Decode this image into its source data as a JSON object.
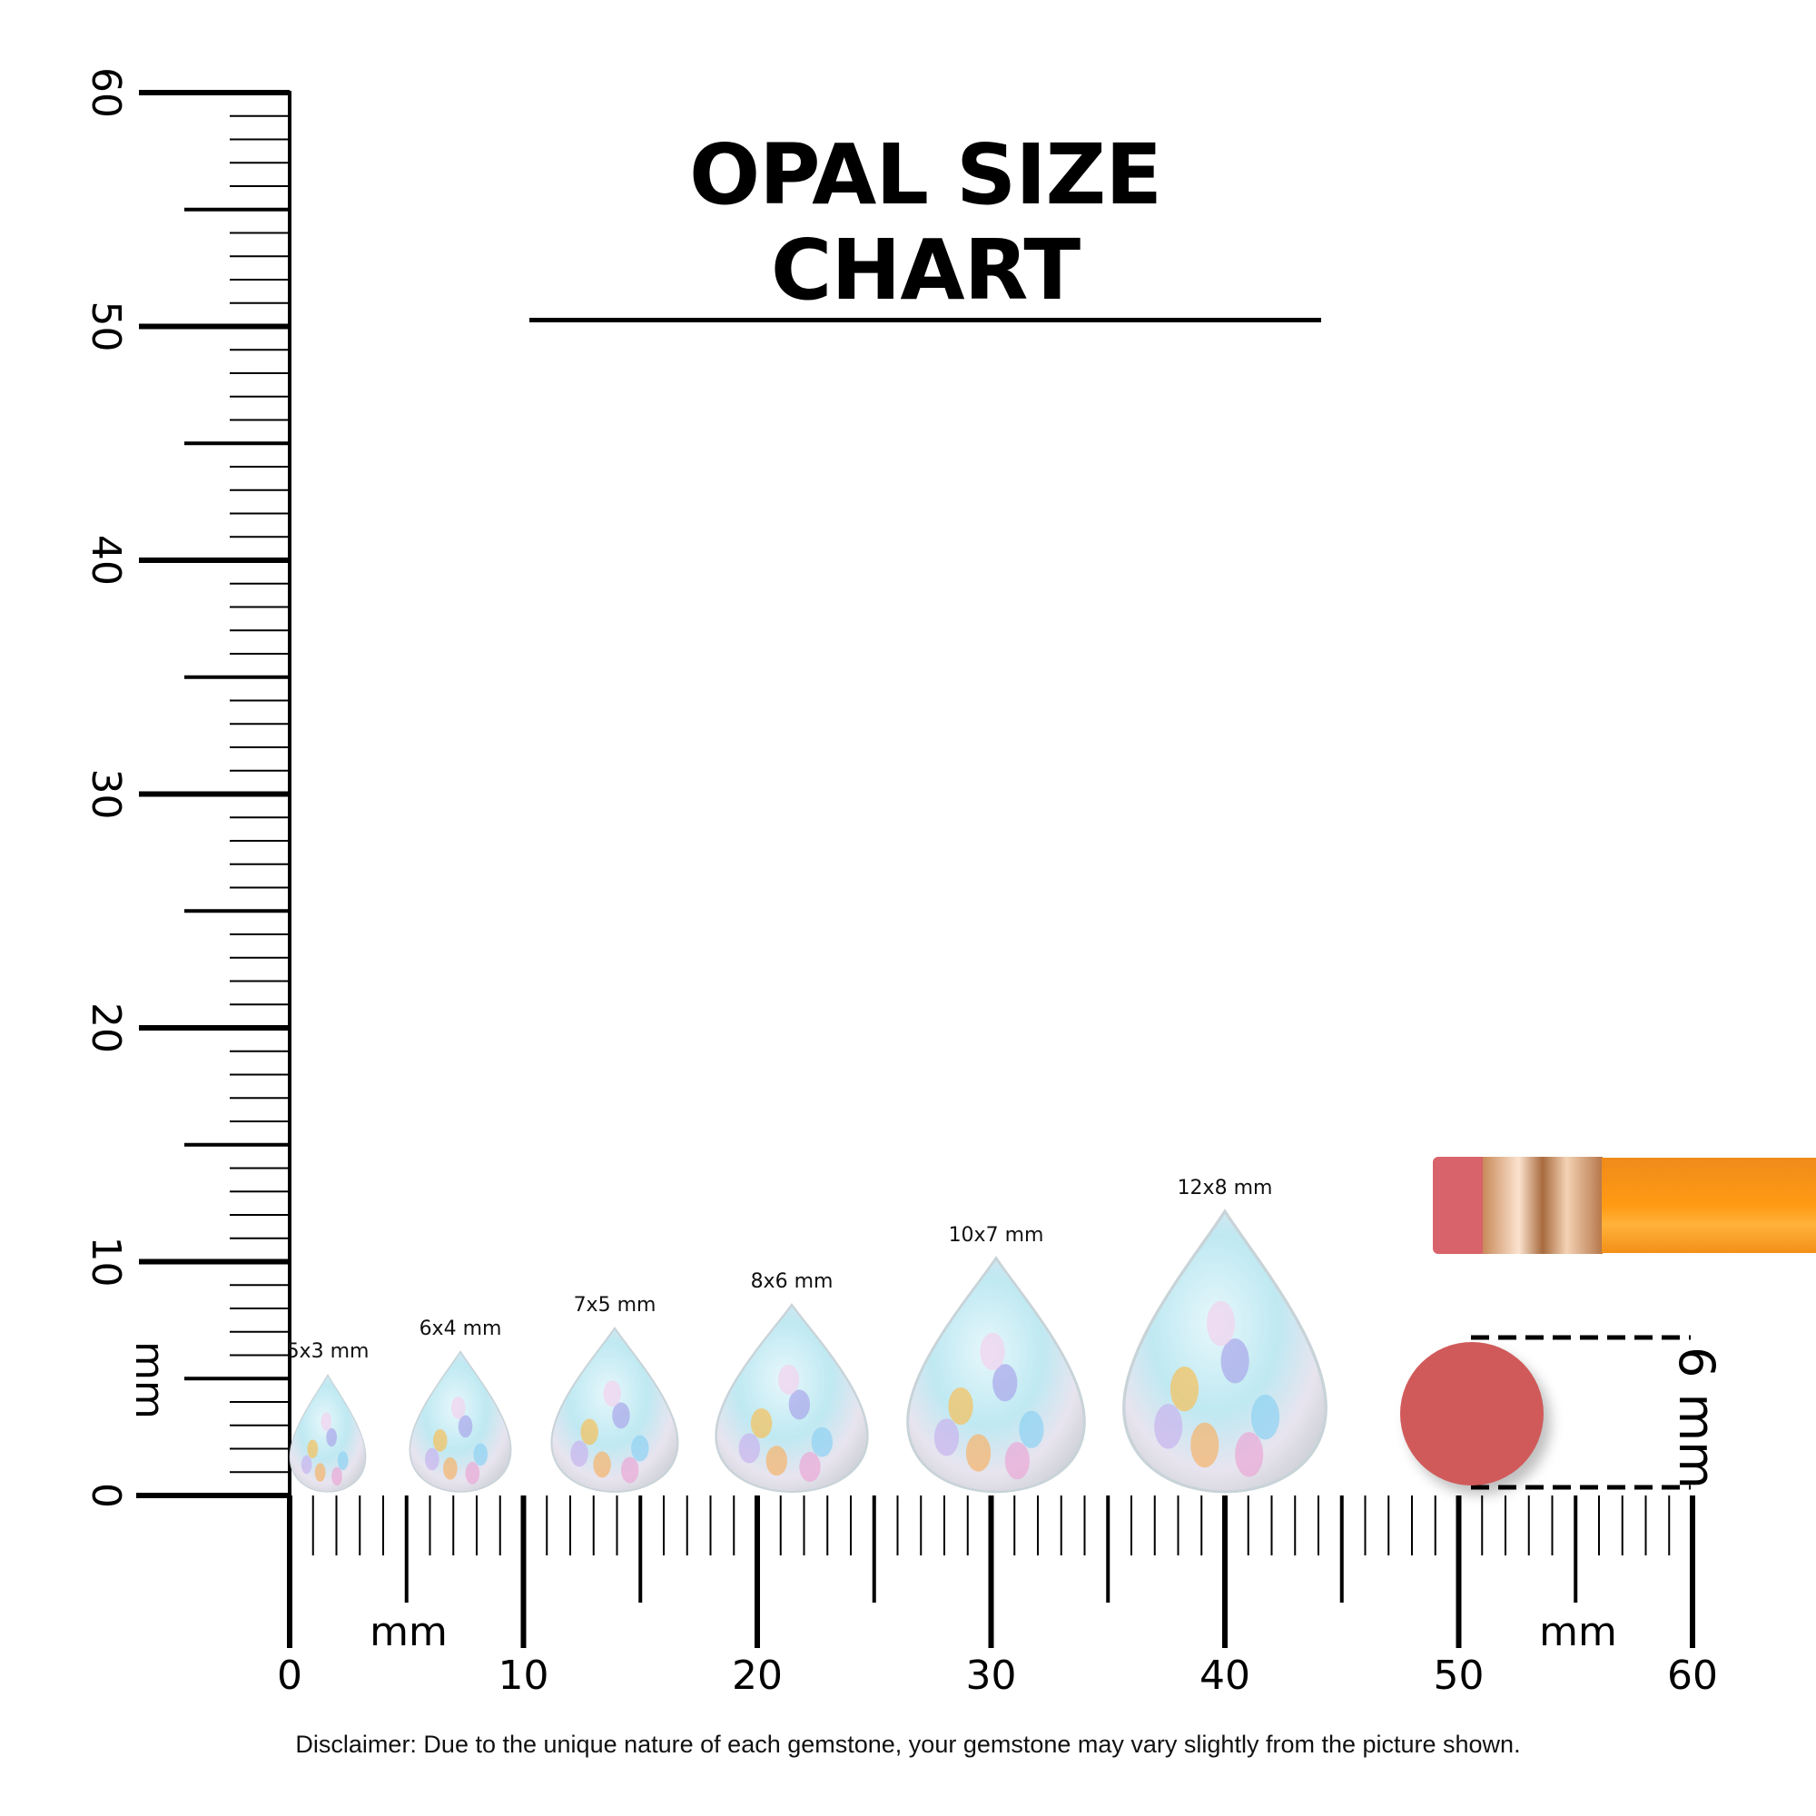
{
  "title": "OPAL SIZE CHART",
  "ruler": {
    "unit_label": "mm",
    "range_mm": [
      0,
      60
    ],
    "tick_labels": [
      "0",
      "10",
      "20",
      "30",
      "40",
      "50",
      "60"
    ]
  },
  "gems": [
    {
      "label": "5x3 mm",
      "length_mm": 5,
      "width_mm": 3
    },
    {
      "label": "6x4 mm",
      "length_mm": 6,
      "width_mm": 4
    },
    {
      "label": "7x5 mm",
      "length_mm": 7,
      "width_mm": 5
    },
    {
      "label": "8x6 mm",
      "length_mm": 8,
      "width_mm": 6
    },
    {
      "label": "10x7 mm",
      "length_mm": 10,
      "width_mm": 7
    },
    {
      "label": "12x8 mm",
      "length_mm": 12,
      "width_mm": 8
    }
  ],
  "reference": {
    "label": "6 mm",
    "object": "pencil eraser",
    "eraser_color": "#d05a5a",
    "pencil_color": "#f7931e"
  },
  "disclaimer": "Disclaimer: Due to the unique nature of each gemstone, your gemstone may vary slightly from the picture shown."
}
